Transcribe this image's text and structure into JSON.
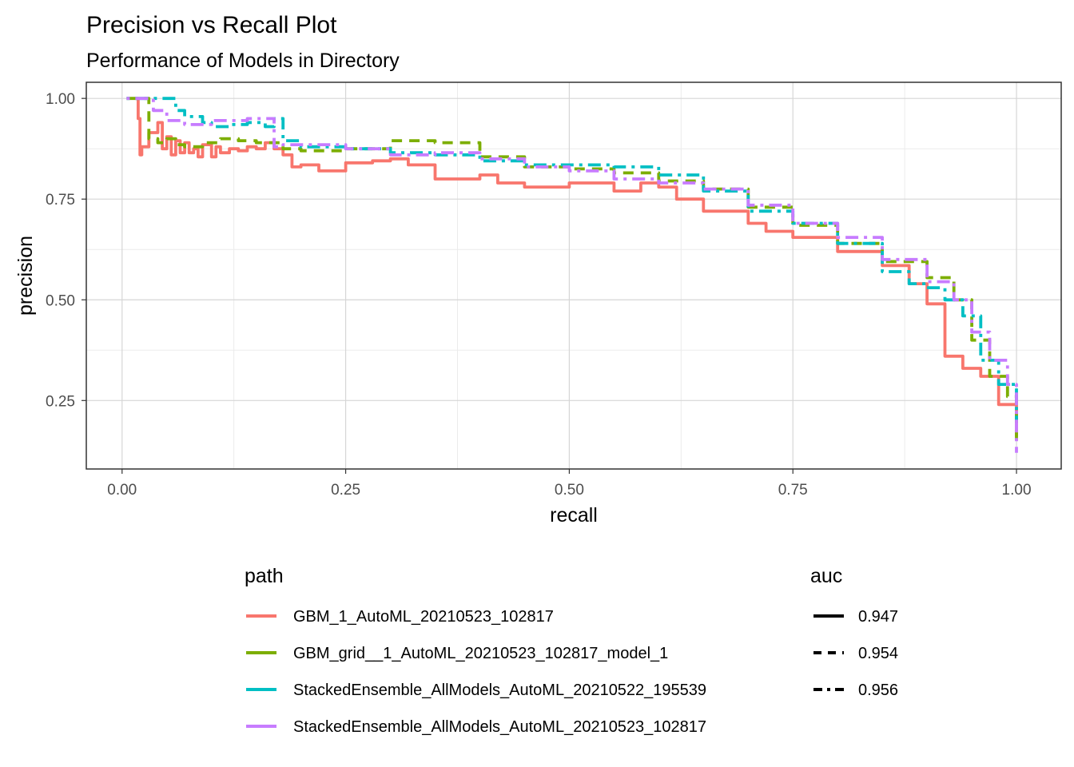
{
  "chart_data": {
    "type": "line",
    "title": "Precision vs Recall Plot",
    "subtitle": "Performance of Models in Directory",
    "xlabel": "recall",
    "ylabel": "precision",
    "xlim": [
      -0.04,
      1.05
    ],
    "ylim": [
      0.08,
      1.04
    ],
    "xticks": [
      0.0,
      0.25,
      0.5,
      0.75,
      1.0
    ],
    "xtick_labels": [
      "0.00",
      "0.25",
      "0.50",
      "0.75",
      "1.00"
    ],
    "yticks": [
      0.25,
      0.5,
      0.75,
      1.0
    ],
    "ytick_labels": [
      "0.25",
      "0.50",
      "0.75",
      "1.00"
    ],
    "grid": true,
    "legend_position": "bottom",
    "legends": [
      {
        "title": "path",
        "entries": [
          {
            "label": "GBM_1_AutoML_20210523_102817",
            "color": "#F8766D"
          },
          {
            "label": "GBM_grid__1_AutoML_20210523_102817_model_1",
            "color": "#7CAE00"
          },
          {
            "label": "StackedEnsemble_AllModels_AutoML_20210522_195539",
            "color": "#00BFC4"
          },
          {
            "label": "StackedEnsemble_AllModels_AutoML_20210523_102817",
            "color": "#C77CFF"
          }
        ]
      },
      {
        "title": "auc",
        "entries": [
          {
            "label": "0.947",
            "linetype": "solid"
          },
          {
            "label": "0.954",
            "linetype": "dashed"
          },
          {
            "label": "0.956",
            "linetype": "dotdash"
          }
        ]
      }
    ],
    "series": [
      {
        "name": "GBM_1_AutoML_20210523_102817",
        "color": "#F8766D",
        "linetype": "solid",
        "x": [
          0.015,
          0.017,
          0.018,
          0.02,
          0.022,
          0.03,
          0.04,
          0.045,
          0.05,
          0.055,
          0.06,
          0.065,
          0.07,
          0.075,
          0.08,
          0.085,
          0.09,
          0.1,
          0.105,
          0.11,
          0.12,
          0.13,
          0.14,
          0.15,
          0.16,
          0.17,
          0.18,
          0.19,
          0.2,
          0.22,
          0.25,
          0.28,
          0.3,
          0.32,
          0.35,
          0.4,
          0.42,
          0.45,
          0.5,
          0.55,
          0.58,
          0.6,
          0.62,
          0.65,
          0.7,
          0.72,
          0.75,
          0.8,
          0.85,
          0.88,
          0.9,
          0.92,
          0.94,
          0.96,
          0.98,
          1.0
        ],
        "y": [
          1.0,
          1.0,
          0.95,
          0.86,
          0.88,
          0.915,
          0.94,
          0.875,
          0.905,
          0.86,
          0.895,
          0.865,
          0.89,
          0.865,
          0.875,
          0.855,
          0.885,
          0.855,
          0.88,
          0.865,
          0.875,
          0.87,
          0.88,
          0.875,
          0.89,
          0.875,
          0.86,
          0.83,
          0.835,
          0.82,
          0.84,
          0.845,
          0.85,
          0.835,
          0.8,
          0.81,
          0.79,
          0.78,
          0.79,
          0.77,
          0.79,
          0.78,
          0.75,
          0.72,
          0.69,
          0.67,
          0.655,
          0.62,
          0.585,
          0.54,
          0.49,
          0.36,
          0.33,
          0.31,
          0.24,
          0.16
        ]
      },
      {
        "name": "GBM_grid__1_AutoML_20210523_102817_model_1",
        "color": "#7CAE00",
        "linetype": "dashed",
        "x": [
          0.005,
          0.025,
          0.03,
          0.04,
          0.05,
          0.06,
          0.07,
          0.09,
          0.11,
          0.13,
          0.15,
          0.18,
          0.2,
          0.25,
          0.3,
          0.35,
          0.4,
          0.45,
          0.5,
          0.55,
          0.6,
          0.65,
          0.7,
          0.75,
          0.8,
          0.85,
          0.9,
          0.93,
          0.95,
          0.97,
          0.99,
          1.0
        ],
        "y": [
          1.0,
          1.0,
          0.9,
          0.89,
          0.9,
          0.885,
          0.88,
          0.89,
          0.9,
          0.895,
          0.89,
          0.875,
          0.87,
          0.875,
          0.895,
          0.89,
          0.855,
          0.83,
          0.825,
          0.815,
          0.795,
          0.775,
          0.73,
          0.685,
          0.64,
          0.595,
          0.555,
          0.5,
          0.4,
          0.31,
          0.26,
          0.15
        ]
      },
      {
        "name": "StackedEnsemble_AllModels_AutoML_20210522_195539",
        "color": "#00BFC4",
        "linetype": "dotdash",
        "x": [
          0.005,
          0.05,
          0.06,
          0.07,
          0.09,
          0.1,
          0.12,
          0.14,
          0.16,
          0.17,
          0.18,
          0.2,
          0.25,
          0.3,
          0.35,
          0.4,
          0.45,
          0.5,
          0.55,
          0.6,
          0.65,
          0.7,
          0.75,
          0.8,
          0.85,
          0.88,
          0.9,
          0.92,
          0.94,
          0.96,
          0.98,
          1.0
        ],
        "y": [
          1.0,
          1.0,
          0.97,
          0.955,
          0.94,
          0.93,
          0.935,
          0.94,
          0.93,
          0.95,
          0.895,
          0.88,
          0.875,
          0.865,
          0.86,
          0.845,
          0.835,
          0.835,
          0.83,
          0.81,
          0.77,
          0.72,
          0.69,
          0.64,
          0.57,
          0.54,
          0.53,
          0.5,
          0.46,
          0.35,
          0.29,
          0.2
        ]
      },
      {
        "name": "StackedEnsemble_AllModels_AutoML_20210523_102817",
        "color": "#C77CFF",
        "linetype": "dotdash",
        "x": [
          0.005,
          0.03,
          0.035,
          0.05,
          0.07,
          0.1,
          0.14,
          0.17,
          0.18,
          0.2,
          0.25,
          0.3,
          0.35,
          0.4,
          0.45,
          0.5,
          0.55,
          0.6,
          0.65,
          0.7,
          0.75,
          0.8,
          0.85,
          0.9,
          0.93,
          0.95,
          0.97,
          0.99,
          1.0
        ],
        "y": [
          1.0,
          1.0,
          0.97,
          0.945,
          0.935,
          0.945,
          0.95,
          0.88,
          0.885,
          0.885,
          0.875,
          0.86,
          0.865,
          0.85,
          0.83,
          0.82,
          0.8,
          0.79,
          0.775,
          0.735,
          0.69,
          0.655,
          0.6,
          0.545,
          0.5,
          0.42,
          0.35,
          0.29,
          0.12
        ]
      }
    ]
  }
}
